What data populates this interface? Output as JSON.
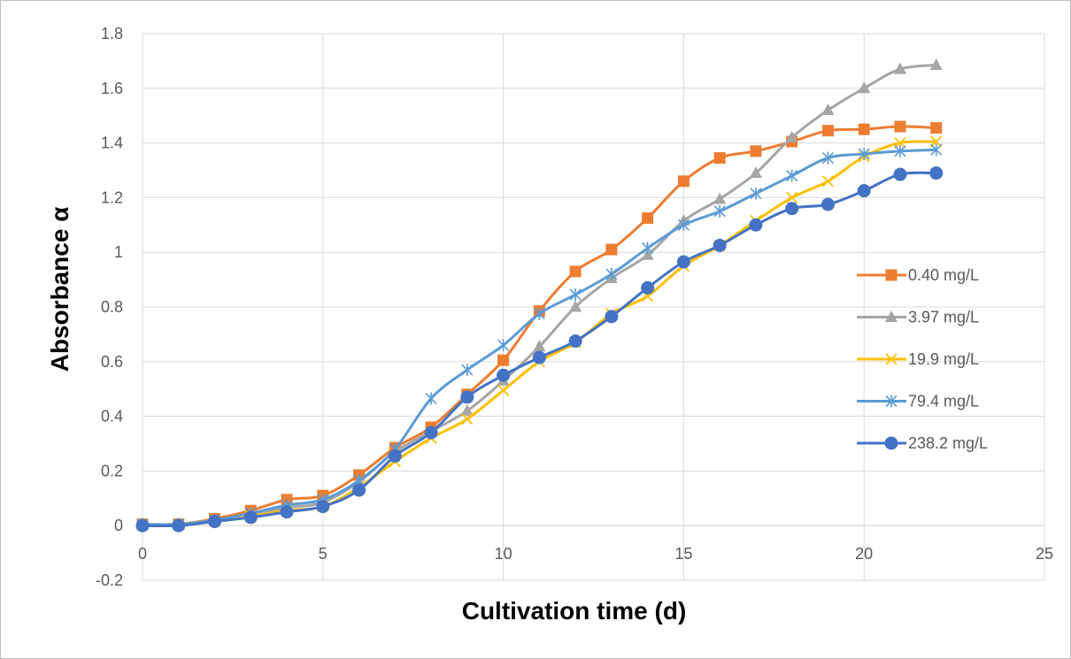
{
  "chart_data": {
    "type": "line",
    "title": "",
    "xlabel": "Cultivation time (d)",
    "ylabel": "Absorbance α",
    "xlim": [
      0,
      25
    ],
    "ylim": [
      -0.2,
      1.8
    ],
    "x_ticks": [
      0,
      5,
      10,
      15,
      20,
      25
    ],
    "y_ticks": [
      -0.2,
      0,
      0.2,
      0.4,
      0.6,
      0.8,
      1,
      1.2,
      1.4,
      1.6,
      1.8
    ],
    "x_tick_labels": [
      "0",
      "5",
      "10",
      "15",
      "20",
      "25"
    ],
    "y_tick_labels": [
      "-0.2",
      "0",
      "0.2",
      "0.4",
      "0.6",
      "0.8",
      "1",
      "1.2",
      "1.4",
      "1.6",
      "1.8"
    ],
    "grid": true,
    "smooth": true,
    "legend_position": "right",
    "x": [
      0,
      1,
      2,
      3,
      4,
      5,
      6,
      7,
      8,
      9,
      10,
      11,
      12,
      13,
      14,
      15,
      16,
      17,
      18,
      19,
      20,
      21,
      22
    ],
    "series": [
      {
        "name": "0.40 mg/L",
        "color": "#ED7D31",
        "marker": "square",
        "values": [
          0.005,
          0.005,
          0.025,
          0.055,
          0.095,
          0.11,
          0.185,
          0.285,
          0.36,
          0.48,
          0.605,
          0.785,
          0.93,
          1.01,
          1.125,
          1.26,
          1.345,
          1.37,
          1.405,
          1.445,
          1.45,
          1.46,
          1.455
        ]
      },
      {
        "name": "3.97 mg/L",
        "color": "#A5A5A5",
        "marker": "triangle",
        "values": [
          0.005,
          0.005,
          0.02,
          0.04,
          0.065,
          0.085,
          0.16,
          0.27,
          0.345,
          0.42,
          0.53,
          0.655,
          0.8,
          0.905,
          0.99,
          1.115,
          1.195,
          1.29,
          1.42,
          1.52,
          1.6,
          1.67,
          1.685
        ]
      },
      {
        "name": "19.9 mg/L",
        "color": "#FFC000",
        "marker": "x",
        "values": [
          0.005,
          0.005,
          0.02,
          0.035,
          0.055,
          0.07,
          0.14,
          0.235,
          0.32,
          0.39,
          0.495,
          0.6,
          0.67,
          0.775,
          0.84,
          0.95,
          1.025,
          1.115,
          1.2,
          1.26,
          1.35,
          1.4,
          1.405
        ]
      },
      {
        "name": "79.4 mg/L",
        "color": "#5B9BD5",
        "marker": "asterisk",
        "values": [
          0.005,
          0.005,
          0.02,
          0.045,
          0.075,
          0.095,
          0.165,
          0.28,
          0.465,
          0.57,
          0.66,
          0.775,
          0.845,
          0.92,
          1.015,
          1.1,
          1.15,
          1.215,
          1.28,
          1.345,
          1.36,
          1.37,
          1.375
        ]
      },
      {
        "name": "238.2 mg/L",
        "color": "#4472C4",
        "marker": "circle",
        "values": [
          0.0,
          0.0,
          0.015,
          0.03,
          0.05,
          0.07,
          0.13,
          0.255,
          0.34,
          0.47,
          0.55,
          0.615,
          0.675,
          0.765,
          0.87,
          0.965,
          1.025,
          1.1,
          1.16,
          1.175,
          1.225,
          1.285,
          1.29
        ]
      }
    ]
  }
}
